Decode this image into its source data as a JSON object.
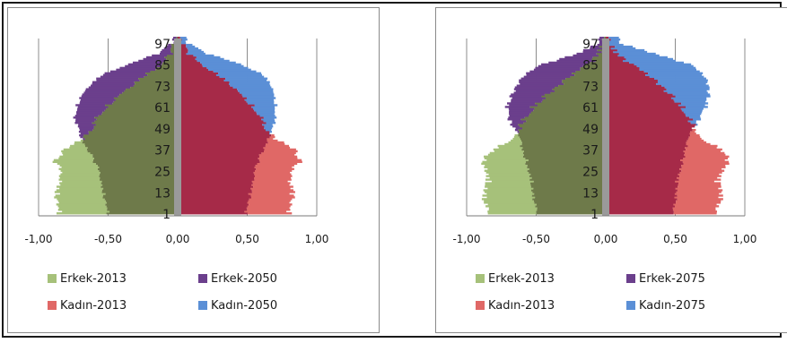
{
  "chart_data": [
    {
      "type": "bar",
      "orientation": "horizontal-population-pyramid",
      "grid": "vertical gridlines",
      "legend_placement": "bottom",
      "xlim": [
        -1.0,
        1.0
      ],
      "x_ticks": [
        "-1,00",
        "-0,50",
        "0,00",
        "0,50",
        "1,00"
      ],
      "age_ticks": [
        "1",
        "13",
        "25",
        "37",
        "49",
        "61",
        "73",
        "85",
        "97"
      ],
      "age_profiles": {
        "ages": [
          1,
          7,
          13,
          19,
          25,
          31,
          37,
          43,
          49,
          55,
          61,
          67,
          73,
          79,
          85,
          91,
          97
        ],
        "erkek_base": [
          0.85,
          0.87,
          0.86,
          0.84,
          0.85,
          0.88,
          0.8,
          0.68,
          0.62,
          0.58,
          0.52,
          0.44,
          0.34,
          0.24,
          0.12,
          0.05,
          0.02
        ],
        "kadin_base": [
          0.8,
          0.82,
          0.82,
          0.8,
          0.83,
          0.88,
          0.83,
          0.7,
          0.64,
          0.6,
          0.55,
          0.48,
          0.4,
          0.3,
          0.18,
          0.08,
          0.03
        ],
        "erkek_proj": [
          0.5,
          0.52,
          0.53,
          0.55,
          0.57,
          0.6,
          0.64,
          0.69,
          0.72,
          0.74,
          0.73,
          0.7,
          0.64,
          0.55,
          0.36,
          0.14,
          0.04
        ],
        "kadin_proj": [
          0.49,
          0.51,
          0.52,
          0.54,
          0.56,
          0.58,
          0.61,
          0.65,
          0.69,
          0.7,
          0.71,
          0.7,
          0.68,
          0.62,
          0.46,
          0.21,
          0.07
        ]
      },
      "series": [
        {
          "name": "Erkek-2013",
          "side": "left",
          "profile": "erkek_base",
          "color": "#a6c17a"
        },
        {
          "name": "Erkek-2050",
          "side": "left",
          "profile": "erkek_proj",
          "color": "#6b3f8c"
        },
        {
          "name": "Kadın-2013",
          "side": "right",
          "profile": "kadin_base",
          "color": "#e06866"
        },
        {
          "name": "Kadın-2050",
          "side": "right",
          "profile": "kadin_proj",
          "color": "#5b8fd6"
        }
      ],
      "overlap_colors": {
        "left": "#6e7a4a",
        "right": "#a62a48"
      }
    },
    {
      "type": "bar",
      "orientation": "horizontal-population-pyramid",
      "grid": "vertical gridlines",
      "legend_placement": "bottom",
      "xlim": [
        -1.0,
        1.0
      ],
      "x_ticks": [
        "-1,00",
        "-0,50",
        "0,00",
        "0,50",
        "1,00"
      ],
      "age_ticks": [
        "1",
        "13",
        "25",
        "37",
        "49",
        "61",
        "73",
        "85",
        "97"
      ],
      "age_profiles": {
        "ages": [
          1,
          7,
          13,
          19,
          25,
          31,
          37,
          43,
          49,
          55,
          61,
          67,
          73,
          79,
          85,
          91,
          97
        ],
        "erkek_base": [
          0.85,
          0.87,
          0.86,
          0.84,
          0.85,
          0.88,
          0.8,
          0.68,
          0.62,
          0.58,
          0.52,
          0.44,
          0.34,
          0.24,
          0.12,
          0.05,
          0.02
        ],
        "kadin_base": [
          0.8,
          0.82,
          0.82,
          0.8,
          0.83,
          0.88,
          0.83,
          0.7,
          0.64,
          0.6,
          0.55,
          0.48,
          0.4,
          0.3,
          0.18,
          0.08,
          0.03
        ],
        "erkek_proj": [
          0.5,
          0.51,
          0.52,
          0.53,
          0.55,
          0.57,
          0.6,
          0.62,
          0.66,
          0.7,
          0.71,
          0.68,
          0.64,
          0.58,
          0.45,
          0.2,
          0.05
        ],
        "kadin_proj": [
          0.49,
          0.5,
          0.5,
          0.51,
          0.53,
          0.55,
          0.57,
          0.6,
          0.63,
          0.68,
          0.72,
          0.74,
          0.74,
          0.7,
          0.6,
          0.35,
          0.1
        ]
      },
      "series": [
        {
          "name": "Erkek-2013",
          "side": "left",
          "profile": "erkek_base",
          "color": "#a6c17a"
        },
        {
          "name": "Erkek-2075",
          "side": "left",
          "profile": "erkek_proj",
          "color": "#6b3f8c"
        },
        {
          "name": "Kadın-2013",
          "side": "right",
          "profile": "kadin_base",
          "color": "#e06866"
        },
        {
          "name": "Kadın-2075",
          "side": "right",
          "profile": "kadin_proj",
          "color": "#5b8fd6"
        }
      ],
      "overlap_colors": {
        "left": "#6e7a4a",
        "right": "#a62a48"
      }
    }
  ]
}
